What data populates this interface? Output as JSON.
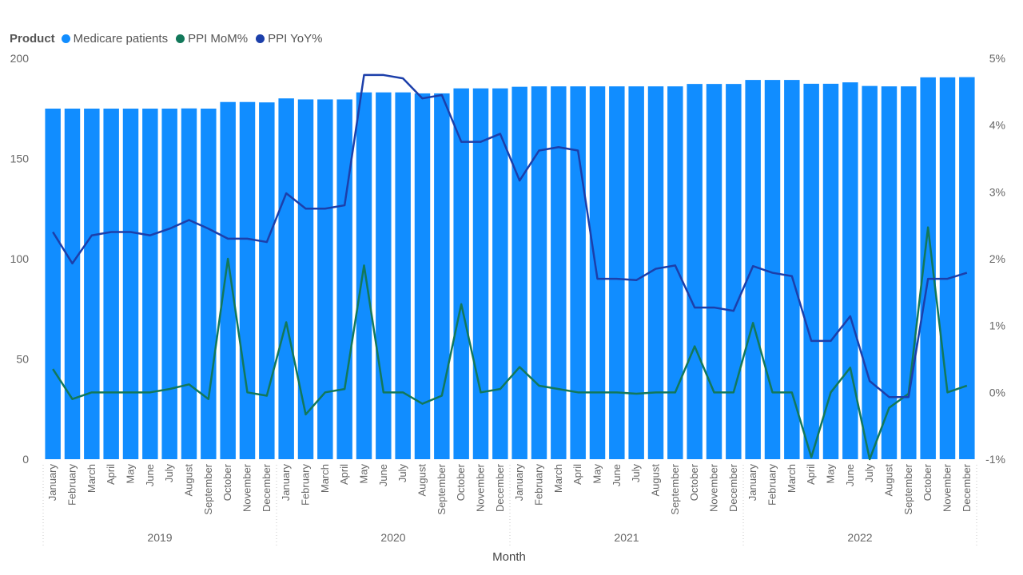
{
  "legend": {
    "title": "Product",
    "items": [
      {
        "label": "Medicare patients",
        "color": "#118DFF"
      },
      {
        "label": "PPI MoM%",
        "color": "#12785A"
      },
      {
        "label": "PPI YoY%",
        "color": "#1C3FAA"
      }
    ]
  },
  "chart_data": {
    "type": "bar",
    "xlabel": "Month",
    "years": [
      "2019",
      "2020",
      "2021",
      "2022"
    ],
    "months": [
      "January",
      "February",
      "March",
      "April",
      "May",
      "June",
      "July",
      "August",
      "September",
      "October",
      "November",
      "December"
    ],
    "y_left": {
      "ticks": [
        "0",
        "50",
        "100",
        "150",
        "200"
      ],
      "range": [
        0,
        200
      ]
    },
    "y_right": {
      "ticks": [
        "-1%",
        "0%",
        "1%",
        "2%",
        "3%",
        "4%",
        "5%"
      ],
      "range": [
        -1,
        5
      ]
    },
    "series": [
      {
        "name": "Medicare patients",
        "type": "bar",
        "axis": "left",
        "color": "#118DFF",
        "values": [
          174.9,
          174.9,
          174.9,
          174.9,
          174.9,
          174.9,
          174.9,
          175.0,
          174.9,
          178.2,
          178.2,
          178.0,
          180.0,
          179.5,
          179.5,
          179.5,
          183.0,
          183.0,
          183.0,
          182.5,
          182.5,
          185.0,
          185.0,
          185.0,
          185.8,
          186.0,
          186.0,
          186.0,
          186.0,
          186.0,
          186.0,
          186.0,
          186.0,
          187.2,
          187.2,
          187.2,
          189.2,
          189.2,
          189.2,
          187.3,
          187.3,
          188.0,
          186.2,
          186.0,
          186.0,
          190.5,
          190.5,
          190.6
        ]
      },
      {
        "name": "PPI MoM%",
        "type": "line",
        "axis": "right",
        "color": "#12785A",
        "values": [
          0.35,
          -0.1,
          0.0,
          0.0,
          0.0,
          0.0,
          0.05,
          0.12,
          -0.1,
          2.0,
          0.0,
          -0.05,
          1.05,
          -0.33,
          0.0,
          0.05,
          1.9,
          0.0,
          0.0,
          -0.17,
          -0.05,
          1.32,
          0.0,
          0.05,
          0.38,
          0.1,
          0.05,
          0.0,
          0.0,
          0.0,
          -0.02,
          0.0,
          0.0,
          0.69,
          0.0,
          0.0,
          1.04,
          0.0,
          0.0,
          -0.97,
          0.0,
          0.37,
          -1.0,
          -0.23,
          -0.02,
          2.47,
          0.0,
          0.1
        ]
      },
      {
        "name": "PPI YoY%",
        "type": "line",
        "axis": "right",
        "color": "#1C3FAA",
        "values": [
          2.4,
          1.93,
          2.35,
          2.4,
          2.4,
          2.35,
          2.45,
          2.58,
          2.45,
          2.3,
          2.3,
          2.25,
          2.98,
          2.75,
          2.75,
          2.8,
          4.75,
          4.75,
          4.7,
          4.4,
          4.45,
          3.75,
          3.75,
          3.87,
          3.17,
          3.62,
          3.67,
          3.62,
          1.7,
          1.7,
          1.68,
          1.85,
          1.9,
          1.27,
          1.27,
          1.22,
          1.89,
          1.79,
          1.74,
          0.77,
          0.77,
          1.14,
          0.17,
          -0.07,
          -0.07,
          1.7,
          1.7,
          1.79
        ]
      }
    ]
  }
}
